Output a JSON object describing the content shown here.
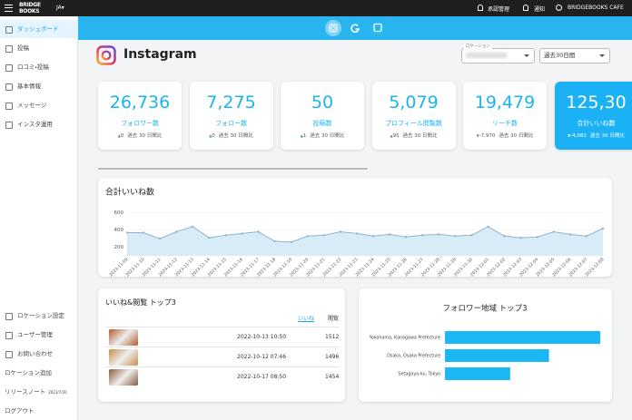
{
  "topbar": {
    "logo": [
      "BRIDGE",
      "BOOKS"
    ],
    "language": "JA",
    "links": [
      "承認管理",
      "通知",
      "BRIDGEBOOKS CAFE"
    ]
  },
  "sidebar": {
    "menu": [
      "ダッシュボード",
      "投稿",
      "口コミ・投稿",
      "基本情報",
      "メッセージ",
      "インスタ運用"
    ],
    "active": 0,
    "bottom_menu": [
      "ロケーション設定",
      "ユーザー管理",
      "お問い合わせ",
      "ロケーション追加"
    ],
    "release_note": {
      "label": "リリースノート",
      "date": "2023/7/26"
    },
    "logout": "ログアウト"
  },
  "header": {
    "title": "Instagram",
    "location_label": "ロケーション",
    "period": "過去30日間"
  },
  "kpis": [
    {
      "value": "26,736",
      "label": "フォロワー数",
      "change": "0",
      "direction": "up",
      "note": "過去 30 日間比"
    },
    {
      "value": "7,275",
      "label": "フォロー数",
      "change": "0",
      "direction": "up",
      "note": "過去 30 日間比"
    },
    {
      "value": "50",
      "label": "投稿数",
      "change": "1",
      "direction": "up",
      "note": "過去 30 日間比"
    },
    {
      "value": "5,079",
      "label": "プロフィール閲覧数",
      "change": "95",
      "direction": "up",
      "note": "過去 30 日間比"
    },
    {
      "value": "19,479",
      "label": "リーチ数",
      "change": "-7,970",
      "direction": "down",
      "note": "過去 30 日間比"
    },
    {
      "value": "125,30",
      "label": "合計いいね数",
      "change": "-4,082",
      "direction": "down",
      "note": "過去 30 日間比",
      "highlight": true
    }
  ],
  "chart_data": [
    {
      "type": "area",
      "title": "合計いいね数",
      "x": [
        "2023-11-09",
        "2023-11-10",
        "2023-11-11",
        "2023-11-12",
        "2023-11-13",
        "2023-11-14",
        "2023-11-15",
        "2023-11-16",
        "2023-11-17",
        "2023-11-18",
        "2023-11-19",
        "2023-11-20",
        "2023-11-21",
        "2023-11-22",
        "2023-11-23",
        "2023-11-24",
        "2023-11-25",
        "2023-11-26",
        "2023-11-27",
        "2023-11-28",
        "2023-11-29",
        "2023-11-30",
        "2023-12-01",
        "2023-12-02",
        "2023-12-03",
        "2023-12-04",
        "2023-12-05",
        "2023-12-06",
        "2023-12-07",
        "2023-12-08"
      ],
      "values": [
        370,
        370,
        300,
        380,
        440,
        310,
        340,
        360,
        380,
        270,
        260,
        330,
        340,
        380,
        360,
        330,
        350,
        320,
        340,
        350,
        330,
        340,
        440,
        330,
        310,
        320,
        380,
        350,
        330,
        420
      ],
      "color": "#8fb4cc",
      "ylim": [
        100,
        650
      ],
      "yticks": [
        200,
        400,
        600
      ],
      "grid": true
    },
    {
      "type": "hbar",
      "title": "フォロワー地域 トップ3",
      "categories": [
        "Yokohama, Kanagawa Prefecture",
        "Osaka, Osaka Prefecture",
        "Setagaya-ku, Tokyo"
      ],
      "values": [
        100,
        67,
        42
      ],
      "color": "#1ab8f5"
    }
  ],
  "top_posts": {
    "title": "いいね&閲覧 トップ3",
    "columns": [
      "いいね",
      "閲覧"
    ],
    "rows": [
      [
        "2022-10-13 10:50",
        1512
      ],
      [
        "2022-10-12 07:46",
        1496
      ],
      [
        "2022-10-17 08:50",
        1454
      ]
    ]
  }
}
